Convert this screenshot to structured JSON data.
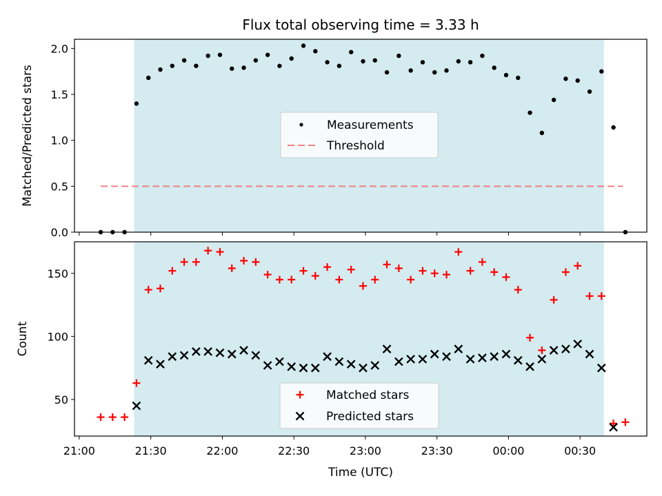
{
  "chart_data": [
    {
      "type": "scatter",
      "title": "Flux total observing time = 3.33 h",
      "ylabel": "Matched/Predicted stars",
      "xlabel": "",
      "x_unit": "minutes after 21:00 UTC",
      "xlim": [
        -2,
        238
      ],
      "ylim": [
        0.0,
        2.1
      ],
      "yticks": [
        0.0,
        0.5,
        1.0,
        1.5,
        2.0
      ],
      "ytick_labels": [
        "0.0",
        "0.5",
        "1.0",
        "1.5",
        "2.0"
      ],
      "shaded_span": [
        23,
        220
      ],
      "shade_color": "#d4ebf0",
      "legend": {
        "position": "center",
        "entries": [
          "Measurements",
          "Threshold"
        ]
      },
      "threshold": {
        "name": "Threshold",
        "y": 0.5,
        "x_range": [
          9,
          228
        ],
        "color": "#f08080",
        "style": "dashed"
      },
      "series": [
        {
          "name": "Measurements",
          "marker": "dot",
          "color": "#000000",
          "x": [
            9,
            14,
            19,
            24,
            29,
            34,
            39,
            44,
            49,
            54,
            59,
            64,
            69,
            74,
            79,
            84,
            89,
            94,
            99,
            104,
            109,
            114,
            119,
            124,
            129,
            134,
            139,
            144,
            149,
            154,
            159,
            164,
            169,
            174,
            179,
            184,
            189,
            194,
            199,
            204,
            209,
            214,
            219,
            224,
            229
          ],
          "y": [
            0.0,
            0.0,
            0.0,
            1.4,
            1.68,
            1.77,
            1.81,
            1.87,
            1.81,
            1.92,
            1.93,
            1.78,
            1.79,
            1.87,
            1.93,
            1.81,
            1.89,
            2.03,
            1.97,
            1.85,
            1.81,
            1.96,
            1.86,
            1.87,
            1.74,
            1.92,
            1.76,
            1.85,
            1.74,
            1.76,
            1.86,
            1.85,
            1.92,
            1.79,
            1.71,
            1.68,
            1.3,
            1.08,
            1.44,
            1.67,
            1.65,
            1.53,
            1.75,
            1.14,
            0.0
          ]
        }
      ]
    },
    {
      "type": "scatter",
      "title": "",
      "ylabel": "Count",
      "xlabel": "Time (UTC)",
      "xlim": [
        -2,
        238
      ],
      "ylim": [
        21,
        175
      ],
      "yticks": [
        50,
        100,
        150
      ],
      "ytick_labels": [
        "50",
        "100",
        "150"
      ],
      "xticks": [
        0,
        30,
        60,
        90,
        120,
        150,
        180,
        210
      ],
      "xtick_labels": [
        "21:00",
        "21:30",
        "22:00",
        "22:30",
        "23:00",
        "23:30",
        "00:00",
        "00:30"
      ],
      "shaded_span": [
        23,
        220
      ],
      "legend": {
        "position": "lower center",
        "entries": [
          "Matched stars",
          "Predicted stars"
        ]
      },
      "series": [
        {
          "name": "Matched stars",
          "marker": "plus",
          "color": "#ff0000",
          "x": [
            9,
            14,
            19,
            24,
            29,
            34,
            39,
            44,
            49,
            54,
            59,
            64,
            69,
            74,
            79,
            84,
            89,
            94,
            99,
            104,
            109,
            114,
            119,
            124,
            129,
            134,
            139,
            144,
            149,
            154,
            159,
            164,
            169,
            174,
            179,
            184,
            189,
            194,
            199,
            204,
            209,
            214,
            219,
            224,
            229
          ],
          "y": [
            36,
            36,
            36,
            63,
            137,
            138,
            152,
            159,
            159,
            168,
            167,
            154,
            160,
            159,
            149,
            145,
            145,
            152,
            148,
            155,
            145,
            153,
            140,
            145,
            157,
            154,
            145,
            152,
            150,
            149,
            167,
            152,
            159,
            151,
            147,
            137,
            99,
            89,
            129,
            151,
            156,
            132,
            132,
            31,
            32
          ]
        },
        {
          "name": "Predicted stars",
          "marker": "x",
          "color": "#000000",
          "x": [
            24,
            29,
            34,
            39,
            44,
            49,
            54,
            59,
            64,
            69,
            74,
            79,
            84,
            89,
            94,
            99,
            104,
            109,
            114,
            119,
            124,
            129,
            134,
            139,
            144,
            149,
            154,
            159,
            164,
            169,
            174,
            179,
            184,
            189,
            194,
            199,
            204,
            209,
            214,
            219,
            224
          ],
          "y": [
            45,
            81,
            78,
            84,
            85,
            88,
            88,
            87,
            86,
            89,
            85,
            77,
            80,
            76,
            75,
            75,
            84,
            80,
            78,
            75,
            77,
            90,
            80,
            82,
            82,
            86,
            84,
            90,
            82,
            83,
            84,
            86,
            81,
            76,
            82,
            89,
            90,
            94,
            86,
            75,
            28
          ]
        }
      ]
    }
  ]
}
